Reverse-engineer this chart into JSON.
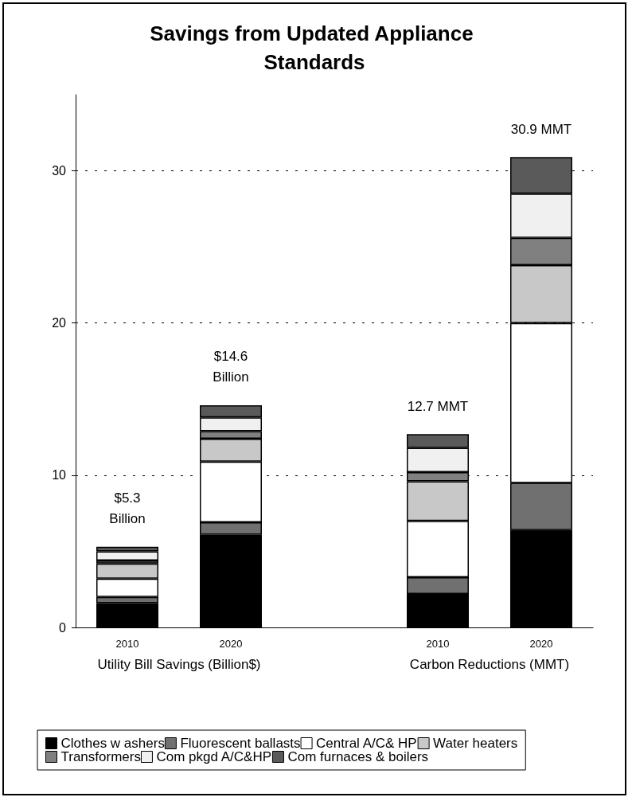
{
  "chart_data": {
    "type": "bar",
    "title": "Savings from Updated Appliance Standards",
    "categories": [
      "2010",
      "2020",
      null,
      "2010",
      "2020"
    ],
    "stacked": true,
    "series": [
      {
        "name": "Clothes w ashers",
        "color": "#000000",
        "values": [
          1.6,
          6.1,
          null,
          2.2,
          6.4
        ]
      },
      {
        "name": "Fluorescent ballasts",
        "color": "#707070",
        "values": [
          0.4,
          0.8,
          null,
          1.1,
          3.1
        ]
      },
      {
        "name": "Central A/C& HP",
        "color": "#ffffff",
        "values": [
          1.2,
          4.0,
          null,
          3.7,
          10.5
        ]
      },
      {
        "name": "Water heaters",
        "color": "#c8c8c8",
        "values": [
          1.0,
          1.5,
          null,
          2.6,
          3.8
        ]
      },
      {
        "name": "Transformers",
        "color": "#808080",
        "values": [
          0.2,
          0.5,
          null,
          0.6,
          1.8
        ]
      },
      {
        "name": "Com pkgd A/C&HP",
        "color": "#f0f0f0",
        "values": [
          0.6,
          0.9,
          null,
          1.6,
          2.9
        ]
      },
      {
        "name": "Com furnaces & boilers",
        "color": "#5a5a5a",
        "values": [
          0.3,
          0.8,
          null,
          0.9,
          2.4
        ]
      }
    ],
    "totals": [
      "$5.3\nBillion",
      "$14.6\nBillion",
      null,
      "12.7 MMT",
      "30.9 MMT"
    ],
    "annotations": [
      "Utility Bill Savings (Billion$)",
      "Carbon Reductions (MMT)"
    ],
    "ylim": [
      0,
      35
    ],
    "yticks": [
      0,
      10,
      20,
      30
    ],
    "grid": "y",
    "legend": "bottom"
  }
}
